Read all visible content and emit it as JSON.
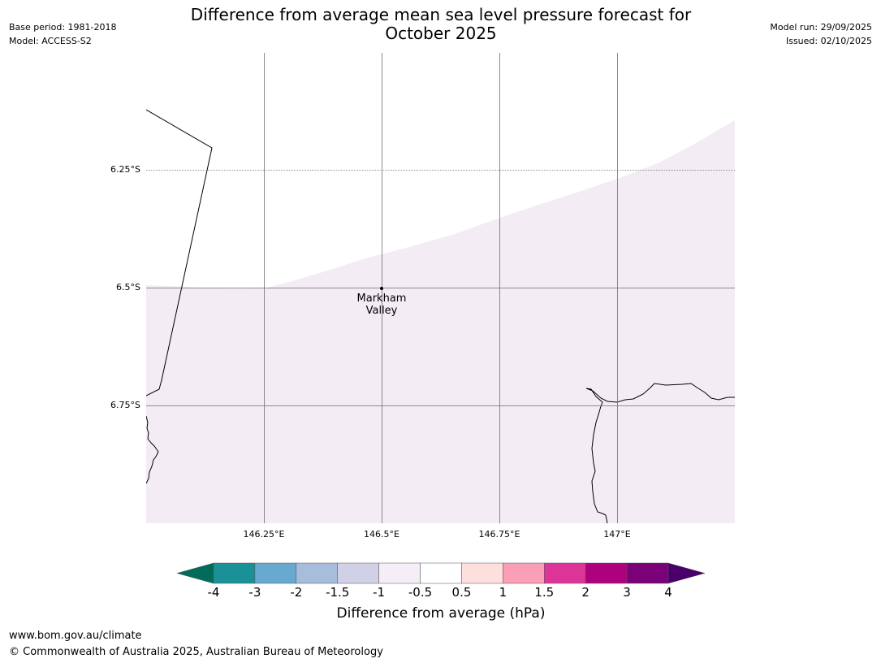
{
  "header": {
    "title_line1": "Difference from average mean sea level pressure forecast for",
    "title_line2": "October 2025",
    "base_period": "Base period: 1981-2018",
    "model": "Model: ACCESS-S2",
    "model_run": "Model run: 29/09/2025",
    "issued": "Issued: 02/10/2025"
  },
  "map": {
    "lat_labels": [
      "6.25°S",
      "6.5°S",
      "6.75°S"
    ],
    "lon_labels": [
      "146.25°E",
      "146.5°E",
      "146.75°E",
      "147°E"
    ],
    "place": {
      "name_line1": "Markham",
      "name_line2": "Valley",
      "lon": 146.5,
      "lat": -6.5
    },
    "fill_category": "-1 to -0.5 hPa"
  },
  "colorbar": {
    "ticks": [
      "-4",
      "-3",
      "-2",
      "-1.5",
      "-1",
      "-0.5",
      "0.5",
      "1",
      "1.5",
      "2",
      "3",
      "4"
    ],
    "colors": [
      "#1a9197",
      "#67a9cf",
      "#a6bddb",
      "#d0d1e6",
      "#f5eef8",
      "#ffffff",
      "#fde0dd",
      "#fa9fb5",
      "#dd3497",
      "#ae017e",
      "#7a0177"
    ],
    "low_extend_color": "#016c59",
    "high_extend_color": "#49006a",
    "label": "Difference from average (hPa)"
  },
  "footer": {
    "url": "www.bom.gov.au/climate",
    "copyright": "© Commonwealth of Australia 2025, Australian Bureau of Meteorology"
  }
}
